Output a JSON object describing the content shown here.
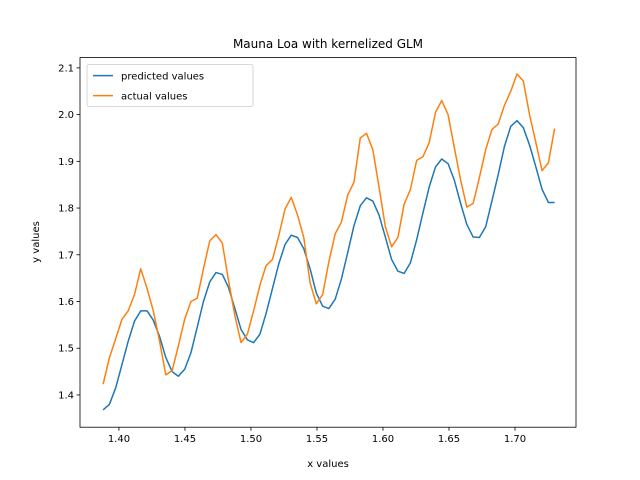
{
  "chart_data": {
    "type": "line",
    "title": "Mauna Loa with kernelized GLM",
    "x_label": "x values",
    "y_label": "y values",
    "legend": "upper left",
    "x": [
      1.388,
      1.3928,
      1.3975,
      1.4023,
      1.407,
      1.4118,
      1.4165,
      1.4213,
      1.426,
      1.4308,
      1.4355,
      1.4403,
      1.445,
      1.4498,
      1.4545,
      1.4593,
      1.464,
      1.4688,
      1.4735,
      1.4783,
      1.483,
      1.4878,
      1.4925,
      1.4973,
      1.502,
      1.5068,
      1.5115,
      1.5163,
      1.521,
      1.5258,
      1.5305,
      1.5353,
      1.54,
      1.5448,
      1.5495,
      1.5543,
      1.559,
      1.5638,
      1.5685,
      1.5733,
      1.578,
      1.5828,
      1.5875,
      1.5923,
      1.597,
      1.6018,
      1.6065,
      1.6113,
      1.616,
      1.6208,
      1.6255,
      1.6303,
      1.635,
      1.6398,
      1.6445,
      1.6493,
      1.654,
      1.6588,
      1.6635,
      1.6683,
      1.673,
      1.6778,
      1.6825,
      1.6873,
      1.692,
      1.6968,
      1.7015,
      1.7063,
      1.711,
      1.7158,
      1.7205,
      1.7253,
      1.73
    ],
    "series": [
      {
        "name": "predicted values",
        "color": "#1f77b4",
        "values": [
          1.368,
          1.38,
          1.415,
          1.465,
          1.515,
          1.558,
          1.58,
          1.58,
          1.56,
          1.525,
          1.48,
          1.45,
          1.44,
          1.455,
          1.49,
          1.545,
          1.6,
          1.642,
          1.662,
          1.658,
          1.63,
          1.585,
          1.54,
          1.518,
          1.512,
          1.53,
          1.575,
          1.628,
          1.68,
          1.722,
          1.742,
          1.737,
          1.713,
          1.67,
          1.618,
          1.59,
          1.585,
          1.605,
          1.648,
          1.705,
          1.762,
          1.805,
          1.822,
          1.815,
          1.785,
          1.738,
          1.69,
          1.665,
          1.66,
          1.683,
          1.732,
          1.79,
          1.845,
          1.888,
          1.905,
          1.895,
          1.86,
          1.81,
          1.765,
          1.738,
          1.737,
          1.76,
          1.815,
          1.872,
          1.932,
          1.975,
          1.987,
          1.972,
          1.935,
          1.888,
          1.84,
          1.812,
          1.812
        ]
      },
      {
        "name": "actual values",
        "color": "#ff7f0e",
        "values": [
          1.423,
          1.48,
          1.52,
          1.562,
          1.58,
          1.615,
          1.67,
          1.628,
          1.58,
          1.515,
          1.443,
          1.452,
          1.505,
          1.562,
          1.6,
          1.607,
          1.67,
          1.73,
          1.743,
          1.725,
          1.645,
          1.57,
          1.512,
          1.53,
          1.58,
          1.635,
          1.677,
          1.69,
          1.74,
          1.798,
          1.823,
          1.785,
          1.737,
          1.64,
          1.595,
          1.615,
          1.685,
          1.745,
          1.77,
          1.828,
          1.855,
          1.95,
          1.96,
          1.925,
          1.845,
          1.76,
          1.717,
          1.737,
          1.808,
          1.84,
          1.902,
          1.91,
          1.94,
          2.005,
          2.03,
          2.0,
          1.93,
          1.86,
          1.802,
          1.81,
          1.865,
          1.925,
          1.968,
          1.98,
          2.02,
          2.05,
          2.087,
          2.072,
          2.0,
          1.94,
          1.88,
          1.897,
          1.97
        ]
      }
    ],
    "xlim": [
      1.3705,
      1.7462
    ],
    "ylim": [
      1.331,
      2.122
    ],
    "xticks": [
      {
        "value": 1.4,
        "label": "1.40"
      },
      {
        "value": 1.45,
        "label": "1.45"
      },
      {
        "value": 1.5,
        "label": "1.50"
      },
      {
        "value": 1.55,
        "label": "1.55"
      },
      {
        "value": 1.6,
        "label": "1.60"
      },
      {
        "value": 1.65,
        "label": "1.65"
      },
      {
        "value": 1.7,
        "label": "1.70"
      }
    ],
    "yticks": [
      1.4,
      1.5,
      1.6,
      1.7,
      1.8,
      1.9,
      {
        "value": 2,
        "label": "2.0"
      },
      2.1
    ]
  }
}
